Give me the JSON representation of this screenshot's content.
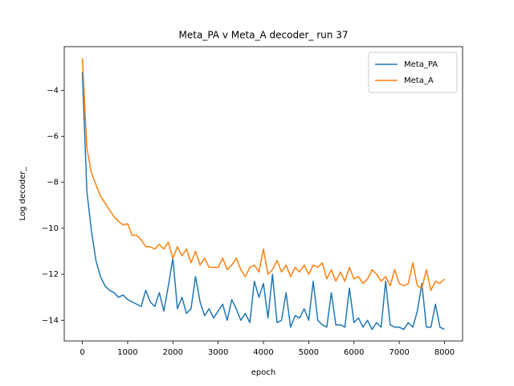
{
  "chart_data": {
    "type": "line",
    "title": "Meta_PA v Meta_A decoder_ run 37",
    "xlabel": "epoch",
    "ylabel": "Log decoder_",
    "x": [
      0,
      100,
      200,
      300,
      400,
      500,
      600,
      700,
      800,
      900,
      1000,
      1100,
      1200,
      1300,
      1400,
      1500,
      1600,
      1700,
      1800,
      1900,
      2000,
      2100,
      2200,
      2300,
      2400,
      2500,
      2600,
      2700,
      2800,
      2900,
      3000,
      3100,
      3200,
      3300,
      3400,
      3500,
      3600,
      3700,
      3800,
      3900,
      4000,
      4100,
      4200,
      4300,
      4400,
      4500,
      4600,
      4700,
      4800,
      4900,
      5000,
      5100,
      5200,
      5300,
      5400,
      5500,
      5600,
      5700,
      5800,
      5900,
      6000,
      6100,
      6200,
      6300,
      6400,
      6500,
      6600,
      6700,
      6800,
      6900,
      7000,
      7100,
      7200,
      7300,
      7400,
      7500,
      7600,
      7700,
      7800,
      7900,
      8000
    ],
    "series": [
      {
        "name": "Meta_PA",
        "color": "#1f77b4",
        "values": [
          -3.2,
          -8.4,
          -10.1,
          -11.4,
          -12.1,
          -12.5,
          -12.7,
          -12.8,
          -13.0,
          -12.9,
          -13.1,
          -13.2,
          -13.3,
          -13.4,
          -12.7,
          -13.2,
          -13.4,
          -12.8,
          -13.6,
          -12.5,
          -11.3,
          -13.5,
          -13.0,
          -13.7,
          -13.5,
          -12.1,
          -13.2,
          -13.8,
          -13.5,
          -13.9,
          -13.6,
          -13.3,
          -14.0,
          -13.1,
          -13.5,
          -14.0,
          -13.7,
          -14.1,
          -12.3,
          -13.0,
          -12.4,
          -13.9,
          -12.0,
          -14.1,
          -14.0,
          -12.8,
          -14.3,
          -13.8,
          -13.9,
          -13.5,
          -14.0,
          -12.3,
          -14.0,
          -14.2,
          -14.3,
          -12.8,
          -14.2,
          -14.2,
          -14.3,
          -12.6,
          -14.1,
          -13.9,
          -14.3,
          -14.0,
          -14.4,
          -14.1,
          -14.3,
          -12.3,
          -14.2,
          -14.3,
          -14.3,
          -14.4,
          -14.1,
          -14.3,
          -13.6,
          -12.4,
          -14.3,
          -14.3,
          -13.3,
          -14.3,
          -14.4
        ]
      },
      {
        "name": "Meta_A",
        "color": "#ff7f0e",
        "values": [
          -2.6,
          -6.5,
          -7.6,
          -8.1,
          -8.6,
          -8.9,
          -9.2,
          -9.5,
          -9.7,
          -9.85,
          -9.8,
          -10.3,
          -10.3,
          -10.5,
          -10.8,
          -10.8,
          -10.9,
          -10.7,
          -10.9,
          -10.6,
          -11.3,
          -10.8,
          -11.2,
          -10.9,
          -11.5,
          -11.0,
          -11.6,
          -11.3,
          -11.7,
          -11.7,
          -11.7,
          -11.3,
          -11.8,
          -11.6,
          -11.3,
          -11.8,
          -12.1,
          -11.7,
          -11.6,
          -11.9,
          -10.9,
          -12.0,
          -11.8,
          -11.4,
          -11.9,
          -11.6,
          -12.1,
          -11.7,
          -11.9,
          -11.6,
          -12.0,
          -11.6,
          -11.7,
          -11.5,
          -12.2,
          -11.8,
          -12.3,
          -11.9,
          -12.3,
          -11.7,
          -12.2,
          -12.1,
          -12.4,
          -12.2,
          -11.8,
          -12.0,
          -12.3,
          -12.1,
          -12.5,
          -11.8,
          -12.4,
          -12.5,
          -12.4,
          -11.5,
          -12.5,
          -12.6,
          -11.8,
          -12.7,
          -12.3,
          -12.4,
          -12.2
        ]
      }
    ],
    "xlim": [
      -400,
      8400
    ],
    "ylim": [
      -14.9,
      -2.1
    ],
    "xticks": [
      0,
      1000,
      2000,
      3000,
      4000,
      5000,
      6000,
      7000,
      8000
    ],
    "yticks": [
      {
        "value": -14,
        "label": "−14"
      },
      {
        "value": -12,
        "label": "−12"
      },
      {
        "value": -10,
        "label": "−10"
      },
      {
        "value": -8,
        "label": "−8"
      },
      {
        "value": -6,
        "label": "−6"
      },
      {
        "value": -4,
        "label": "−4"
      }
    ],
    "legend": "upper right"
  }
}
